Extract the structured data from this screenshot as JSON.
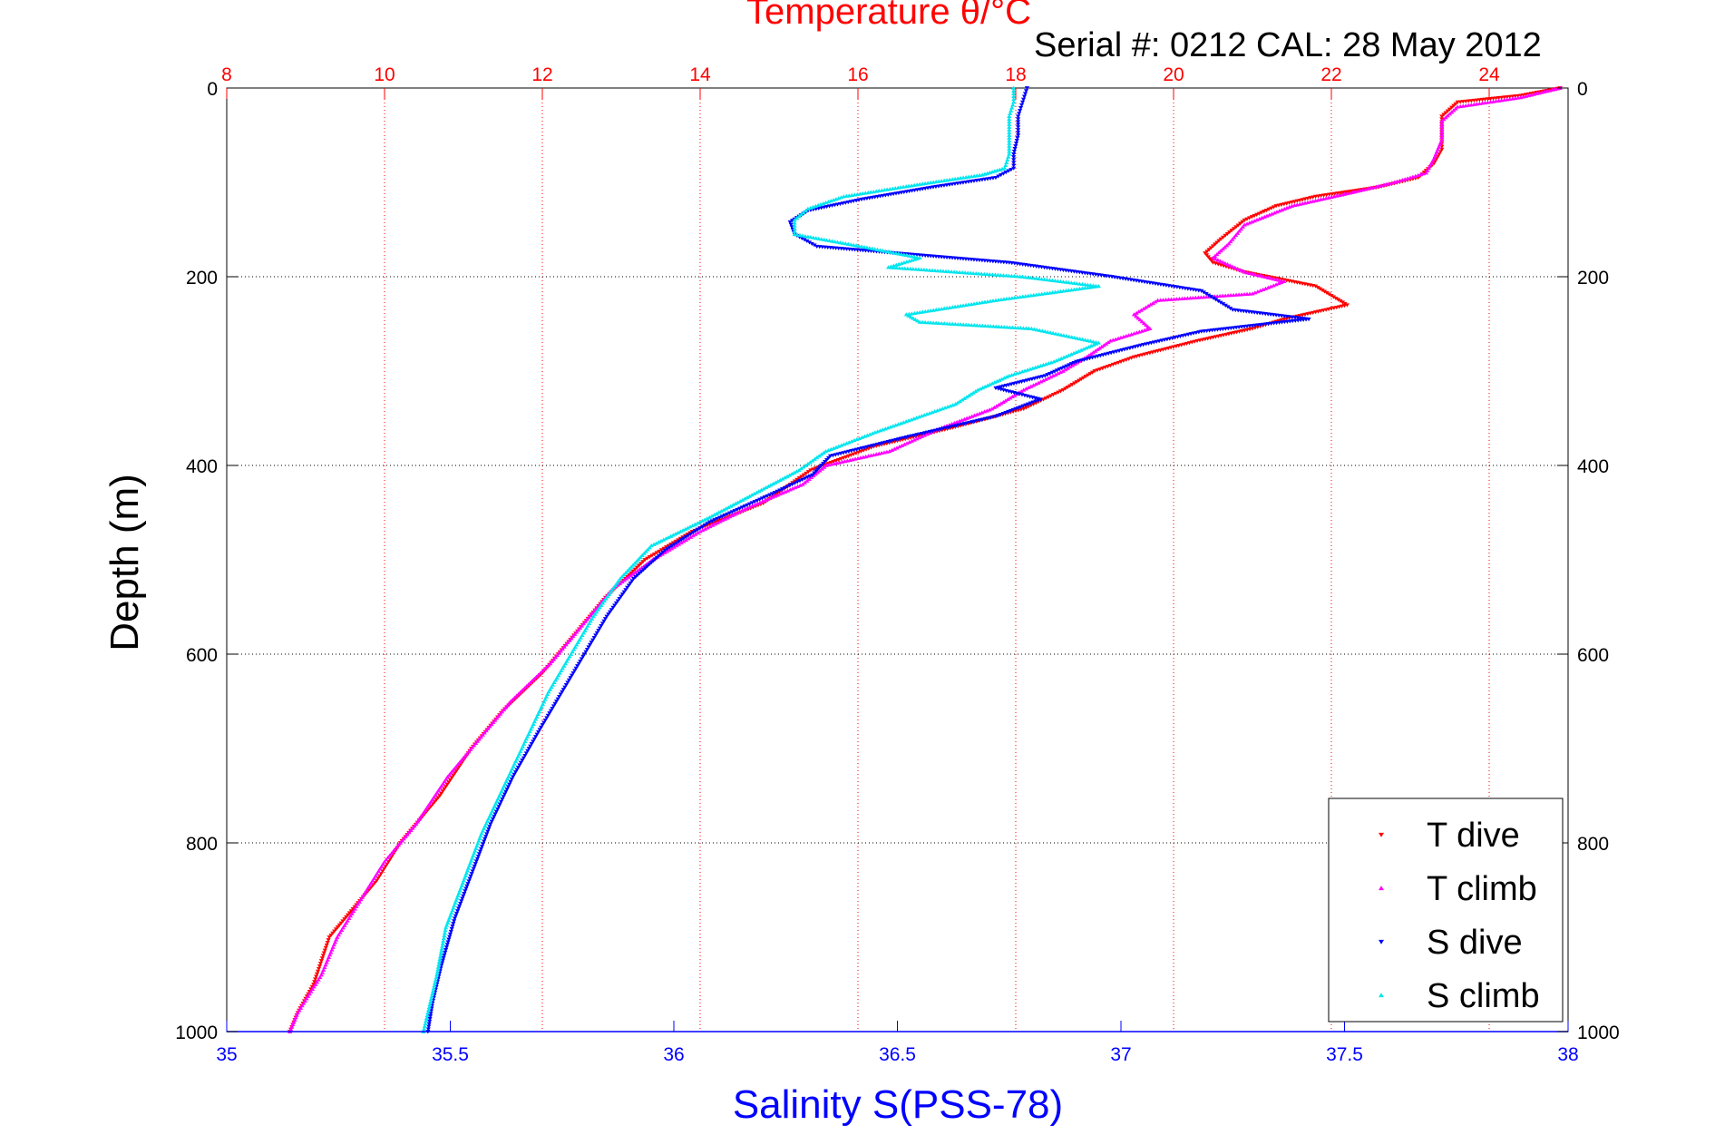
{
  "chart_data": {
    "type": "scatter",
    "title": "Temperature θ/°C",
    "subtitle": "Serial #: 0212  CAL: 28 May 2012",
    "xlabel": "Salinity S(PSS-78)",
    "x2label": "Temperature θ/°C",
    "ylabel": "Depth (m)",
    "xlim": [
      35,
      38
    ],
    "x2lim": [
      8,
      25
    ],
    "ylim": [
      0,
      1000
    ],
    "y_reversed": true,
    "grid": true,
    "legend_position": "bottom-right",
    "x_ticks": [
      "35",
      "35.5",
      "36",
      "36.5",
      "37",
      "37.5",
      "38"
    ],
    "x2_ticks": [
      "8",
      "10",
      "12",
      "14",
      "16",
      "18",
      "20",
      "22",
      "24"
    ],
    "y_ticks": [
      "0",
      "200",
      "400",
      "600",
      "800",
      "1000"
    ],
    "colors": {
      "temperature_axis": "#ff0000",
      "salinity_axis": "#0000ff",
      "T dive": "#ff0000",
      "T climb": "#ff00ff",
      "S dive": "#0000ff",
      "S climb": "#00e5ee"
    },
    "series": [
      {
        "name": "T dive",
        "axis": "temperature",
        "marker": "triangle-down",
        "points": [
          [
            24.9,
            0
          ],
          [
            24.4,
            8
          ],
          [
            23.6,
            15
          ],
          [
            23.4,
            30
          ],
          [
            23.4,
            50
          ],
          [
            23.4,
            65
          ],
          [
            23.3,
            80
          ],
          [
            23.1,
            95
          ],
          [
            22.6,
            105
          ],
          [
            21.8,
            115
          ],
          [
            21.3,
            125
          ],
          [
            20.9,
            140
          ],
          [
            20.6,
            160
          ],
          [
            20.4,
            175
          ],
          [
            20.5,
            185
          ],
          [
            20.9,
            195
          ],
          [
            21.8,
            210
          ],
          [
            22.2,
            230
          ],
          [
            21.4,
            245
          ],
          [
            21.0,
            255
          ],
          [
            20.3,
            268
          ],
          [
            19.5,
            285
          ],
          [
            19.0,
            300
          ],
          [
            18.6,
            320
          ],
          [
            18.1,
            340
          ],
          [
            17.2,
            360
          ],
          [
            16.2,
            380
          ],
          [
            15.4,
            405
          ],
          [
            14.8,
            440
          ],
          [
            13.9,
            470
          ],
          [
            13.3,
            500
          ],
          [
            12.8,
            540
          ],
          [
            12.4,
            580
          ],
          [
            12.0,
            620
          ],
          [
            11.5,
            660
          ],
          [
            11.1,
            700
          ],
          [
            10.7,
            750
          ],
          [
            10.2,
            800
          ],
          [
            9.9,
            840
          ],
          [
            9.6,
            870
          ],
          [
            9.3,
            900
          ],
          [
            9.1,
            950
          ],
          [
            8.9,
            980
          ],
          [
            8.8,
            1000
          ]
        ]
      },
      {
        "name": "T climb",
        "axis": "temperature",
        "marker": "triangle-up",
        "points": [
          [
            24.9,
            0
          ],
          [
            24.4,
            10
          ],
          [
            23.6,
            20
          ],
          [
            23.4,
            35
          ],
          [
            23.4,
            55
          ],
          [
            23.3,
            75
          ],
          [
            23.2,
            90
          ],
          [
            22.8,
            100
          ],
          [
            22.3,
            110
          ],
          [
            21.5,
            125
          ],
          [
            20.9,
            145
          ],
          [
            20.7,
            165
          ],
          [
            20.5,
            180
          ],
          [
            20.9,
            195
          ],
          [
            21.4,
            205
          ],
          [
            21.0,
            218
          ],
          [
            19.8,
            225
          ],
          [
            19.5,
            240
          ],
          [
            19.7,
            255
          ],
          [
            19.2,
            268
          ],
          [
            18.9,
            285
          ],
          [
            18.6,
            300
          ],
          [
            18.1,
            320
          ],
          [
            17.7,
            340
          ],
          [
            17.0,
            362
          ],
          [
            16.4,
            385
          ],
          [
            15.6,
            400
          ],
          [
            15.3,
            420
          ],
          [
            14.6,
            445
          ],
          [
            14.0,
            470
          ],
          [
            13.4,
            500
          ],
          [
            12.9,
            530
          ],
          [
            12.5,
            570
          ],
          [
            12.1,
            610
          ],
          [
            11.6,
            650
          ],
          [
            11.2,
            690
          ],
          [
            10.8,
            730
          ],
          [
            10.4,
            780
          ],
          [
            10.0,
            820
          ],
          [
            9.7,
            860
          ],
          [
            9.4,
            900
          ],
          [
            9.2,
            940
          ],
          [
            8.9,
            980
          ],
          [
            8.8,
            1000
          ]
        ]
      },
      {
        "name": "S dive",
        "axis": "salinity",
        "marker": "triangle-down",
        "points": [
          [
            36.79,
            0
          ],
          [
            36.78,
            15
          ],
          [
            36.77,
            30
          ],
          [
            36.77,
            50
          ],
          [
            36.76,
            70
          ],
          [
            36.76,
            85
          ],
          [
            36.72,
            95
          ],
          [
            36.58,
            105
          ],
          [
            36.42,
            118
          ],
          [
            36.3,
            130
          ],
          [
            36.26,
            142
          ],
          [
            36.27,
            155
          ],
          [
            36.32,
            168
          ],
          [
            36.75,
            185
          ],
          [
            36.98,
            200
          ],
          [
            37.18,
            215
          ],
          [
            37.25,
            235
          ],
          [
            37.42,
            245
          ],
          [
            37.18,
            258
          ],
          [
            37.05,
            272
          ],
          [
            36.9,
            290
          ],
          [
            36.83,
            305
          ],
          [
            36.72,
            318
          ],
          [
            36.82,
            330
          ],
          [
            36.72,
            348
          ],
          [
            36.52,
            370
          ],
          [
            36.35,
            390
          ],
          [
            36.31,
            410
          ],
          [
            36.22,
            430
          ],
          [
            36.08,
            460
          ],
          [
            35.98,
            490
          ],
          [
            35.91,
            520
          ],
          [
            35.85,
            560
          ],
          [
            35.8,
            600
          ],
          [
            35.75,
            640
          ],
          [
            35.7,
            680
          ],
          [
            35.64,
            730
          ],
          [
            35.59,
            780
          ],
          [
            35.55,
            830
          ],
          [
            35.51,
            880
          ],
          [
            35.48,
            930
          ],
          [
            35.46,
            970
          ],
          [
            35.45,
            1000
          ]
        ]
      },
      {
        "name": "S climb",
        "axis": "salinity",
        "marker": "triangle-up",
        "points": [
          [
            36.76,
            0
          ],
          [
            36.76,
            15
          ],
          [
            36.75,
            30
          ],
          [
            36.75,
            50
          ],
          [
            36.75,
            70
          ],
          [
            36.74,
            85
          ],
          [
            36.69,
            92
          ],
          [
            36.55,
            102
          ],
          [
            36.38,
            115
          ],
          [
            36.3,
            128
          ],
          [
            36.27,
            140
          ],
          [
            36.27,
            155
          ],
          [
            36.42,
            168
          ],
          [
            36.55,
            180
          ],
          [
            36.48,
            190
          ],
          [
            36.78,
            200
          ],
          [
            36.95,
            210
          ],
          [
            36.72,
            225
          ],
          [
            36.52,
            240
          ],
          [
            36.55,
            248
          ],
          [
            36.8,
            255
          ],
          [
            36.95,
            270
          ],
          [
            36.85,
            290
          ],
          [
            36.75,
            305
          ],
          [
            36.68,
            320
          ],
          [
            36.63,
            335
          ],
          [
            36.45,
            365
          ],
          [
            36.34,
            385
          ],
          [
            36.28,
            405
          ],
          [
            36.18,
            430
          ],
          [
            36.08,
            455
          ],
          [
            35.95,
            485
          ],
          [
            35.88,
            520
          ],
          [
            35.82,
            560
          ],
          [
            35.77,
            600
          ],
          [
            35.72,
            640
          ],
          [
            35.67,
            690
          ],
          [
            35.62,
            740
          ],
          [
            35.57,
            790
          ],
          [
            35.53,
            840
          ],
          [
            35.49,
            890
          ],
          [
            35.47,
            940
          ],
          [
            35.45,
            980
          ],
          [
            35.44,
            1000
          ]
        ]
      }
    ]
  }
}
